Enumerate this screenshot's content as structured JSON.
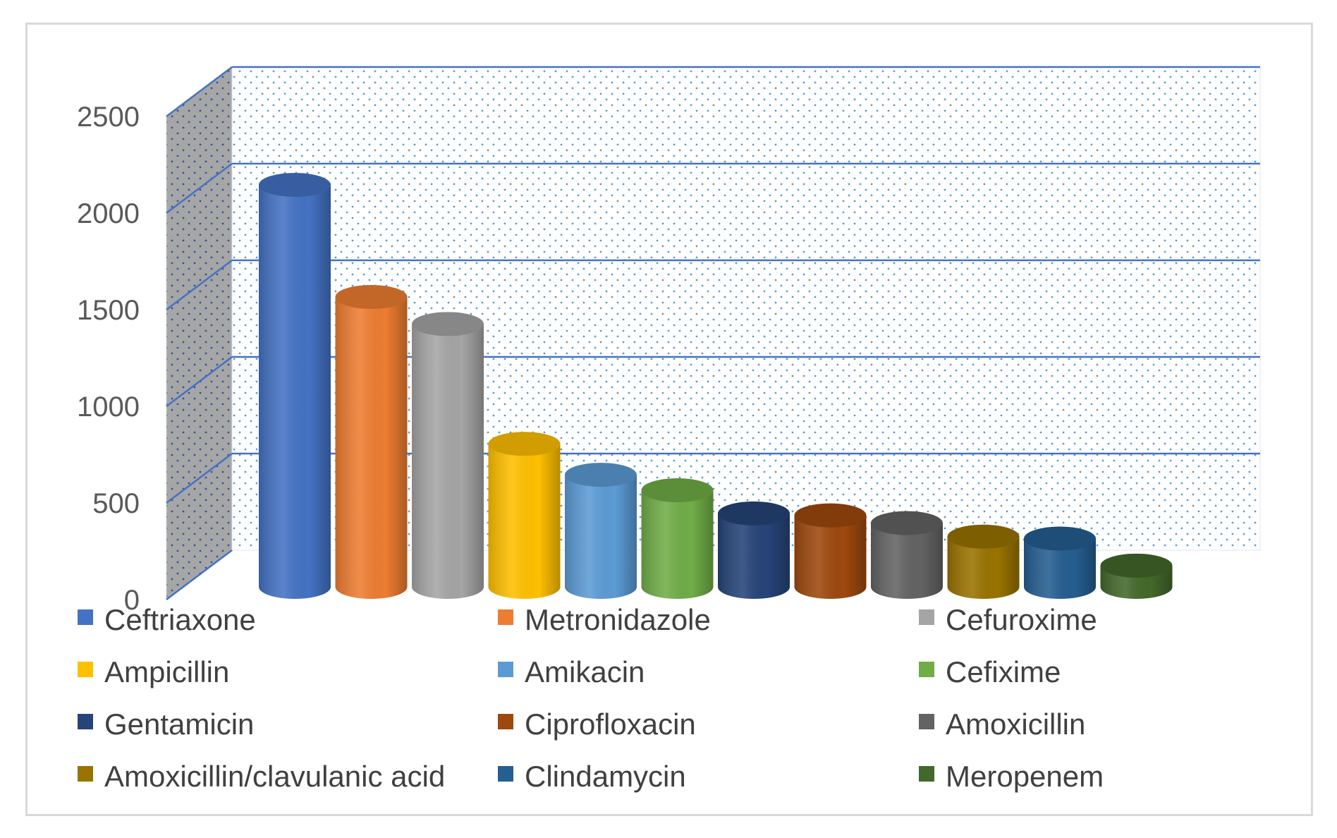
{
  "chart_data": {
    "type": "bar",
    "categories": [
      "Ceftriaxone",
      "Metronidazole",
      "Cefuroxime",
      "Ampicillin",
      "Amikacin",
      "Cefixime",
      "Gentamicin",
      "Ciprofloxacin",
      "Amoxicillin",
      "Amoxicillin/clavulanic acid",
      "Clindamycin",
      "Meropenem"
    ],
    "values": [
      2080,
      1500,
      1360,
      740,
      580,
      500,
      380,
      370,
      330,
      260,
      250,
      110
    ],
    "colors": [
      "#4472c4",
      "#ed7d31",
      "#a5a5a5",
      "#ffc000",
      "#5b9bd5",
      "#70ad47",
      "#264478",
      "#9e480e",
      "#636363",
      "#997300",
      "#255e91",
      "#43682b"
    ],
    "ylim": [
      0,
      2500
    ],
    "yticks": [
      "0",
      "500",
      "1000",
      "1500",
      "2000",
      "2500"
    ],
    "shape": "3d-cylinder",
    "legend_position": "bottom",
    "grid": true
  }
}
